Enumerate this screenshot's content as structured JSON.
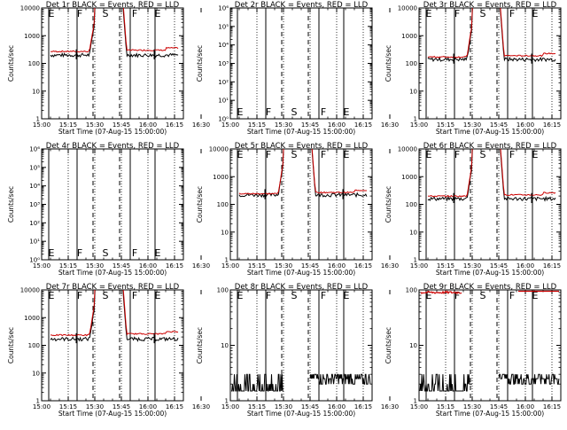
{
  "chart_data": [
    {
      "type": "line",
      "title": "Det 1r BLACK = Events, RED = LLD",
      "xlabel": "Start Time (07-Aug-15 15:00:00)",
      "ylabel": "Counts/sec",
      "yticks": [
        "1",
        "10",
        "100",
        "1000",
        "10000"
      ],
      "ylim_decades": 4,
      "saturated": true,
      "black_level": 200,
      "red_level": 300
    },
    {
      "type": "line",
      "title": "Det 2r BLACK = Events, RED = LLD",
      "xlabel": "Start Time (07-Aug-15 15:00:00)",
      "ylabel": "Counts/sec",
      "yticks": [
        "10⁰",
        "10¹",
        "10²",
        "10³",
        "10⁴",
        "10⁵",
        "10⁶"
      ],
      "ylim_decades": 6,
      "empty": true
    },
    {
      "type": "line",
      "title": "Det 3r BLACK = Events, RED = LLD",
      "xlabel": "Start Time (07-Aug-15 15:00:00)",
      "ylabel": "Counts/sec",
      "yticks": [
        "1",
        "10",
        "100",
        "1000",
        "10000"
      ],
      "ylim_decades": 4,
      "saturated": true,
      "black_level": 140,
      "red_level": 190
    },
    {
      "type": "line",
      "title": "Det 4r BLACK = Events, RED = LLD",
      "xlabel": "Start Time (07-Aug-15 15:00:00)",
      "ylabel": "Counts/sec",
      "yticks": [
        "10⁰",
        "10¹",
        "10²",
        "10³",
        "10⁴",
        "10⁵",
        "10⁶"
      ],
      "ylim_decades": 6,
      "empty": true
    },
    {
      "type": "line",
      "title": "Det 5r BLACK = Events, RED = LLD",
      "xlabel": "Start Time (07-Aug-15 15:00:00)",
      "ylabel": "Counts/sec",
      "yticks": [
        "1",
        "10",
        "100",
        "1000",
        "10000"
      ],
      "ylim_decades": 4,
      "saturated": true,
      "black_level": 220,
      "red_level": 270
    },
    {
      "type": "line",
      "title": "Det 6r BLACK = Events, RED = LLD",
      "xlabel": "Start Time (07-Aug-15 15:00:00)",
      "ylabel": "Counts/sec",
      "yticks": [
        "1",
        "10",
        "100",
        "1000",
        "10000"
      ],
      "ylim_decades": 4,
      "saturated": true,
      "black_level": 160,
      "red_level": 220
    },
    {
      "type": "line",
      "title": "Det 7r BLACK = Events, RED = LLD",
      "xlabel": "Start Time (07-Aug-15 15:00:00)",
      "ylabel": "Counts/sec",
      "yticks": [
        "1",
        "10",
        "100",
        "1000",
        "10000"
      ],
      "ylim_decades": 4,
      "saturated": true,
      "black_level": 170,
      "red_level": 260
    },
    {
      "type": "line",
      "title": "Det 8r BLACK = Events, RED = LLD",
      "xlabel": "Start Time (07-Aug-15 15:00:00)",
      "ylabel": "Counts/sec",
      "yticks": [
        "1",
        "10",
        "100"
      ],
      "ylim_decades": 2,
      "noisy": true,
      "black_level": 2
    },
    {
      "type": "line",
      "title": "Det 9r BLACK = Events, RED = LLD",
      "xlabel": "Start Time (07-Aug-15 15:00:00)",
      "ylabel": "Counts/sec",
      "yticks": [
        "1",
        "10",
        "100"
      ],
      "ylim_decades": 2,
      "noisy": true,
      "black_level": 2,
      "red_level": 90
    }
  ],
  "common": {
    "xticks": [
      "15:00",
      "15:15",
      "15:30",
      "15:45",
      "16:00",
      "16:15",
      "16:30"
    ],
    "segment_labels": [
      "E",
      "F",
      "S",
      "F",
      "E"
    ],
    "segment_minutes": [
      5.5,
      21.5,
      36,
      52.5,
      65.5
    ],
    "solid_lines_min": [
      4,
      20,
      50,
      64
    ],
    "dashed_lines_min": [
      29,
      44
    ],
    "dotted_lines_min": [
      15,
      30,
      45,
      60,
      75
    ],
    "x_range_min": [
      0,
      80
    ],
    "colors": {
      "events": "#000000",
      "lld": "#cc0000"
    }
  }
}
